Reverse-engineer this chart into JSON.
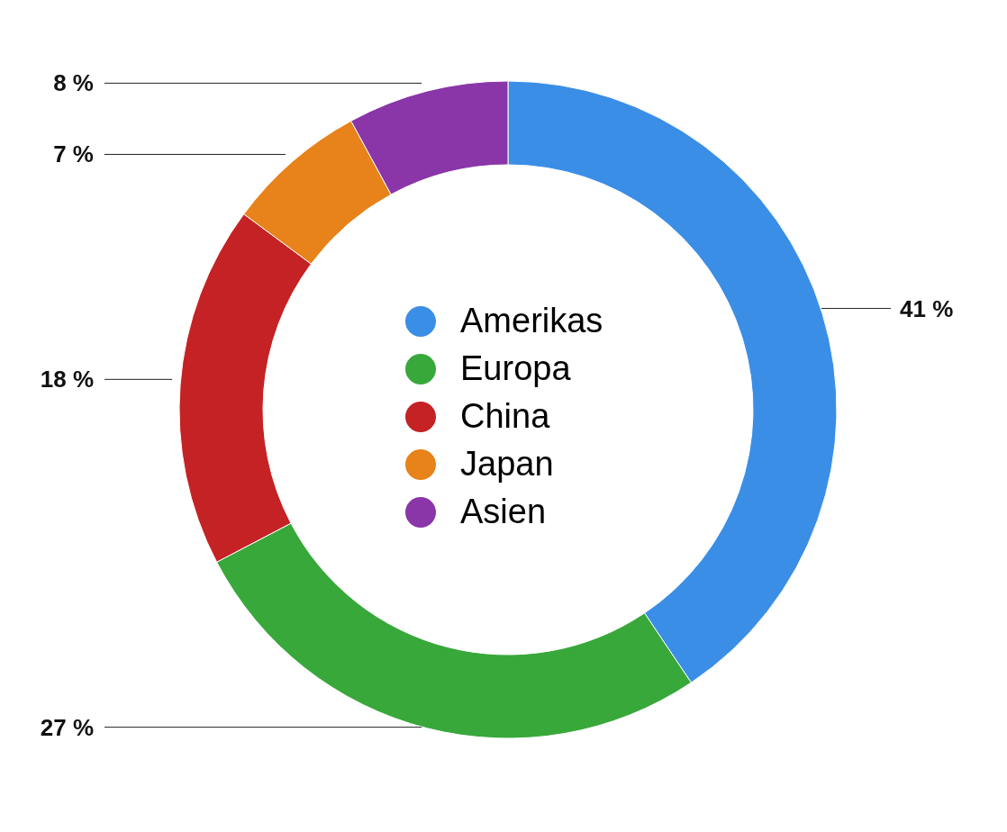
{
  "chart_data": {
    "type": "donut",
    "categories": [
      "Amerikas",
      "Europa",
      "China",
      "Japan",
      "Asien"
    ],
    "values": [
      41,
      27,
      18,
      7,
      8
    ],
    "colors": [
      "#3a8ee6",
      "#38a83a",
      "#c42224",
      "#e8821a",
      "#8a35a8"
    ],
    "value_labels": [
      "41 %",
      "27 %",
      "18 %",
      "7 %",
      "8 %"
    ],
    "legend": "center"
  }
}
